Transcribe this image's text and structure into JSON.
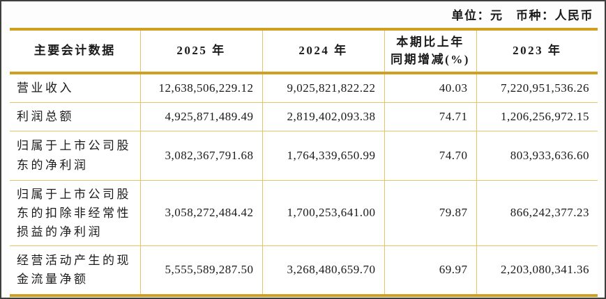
{
  "page": {
    "units_label": "单位：元　币种：人民币"
  },
  "colors": {
    "border_thick_gold": "#d19f1f",
    "border_thin_gold": "#e6c363",
    "outer_frame": "#3e3e3e",
    "text": "#1a1a1a",
    "background": "#ffffff"
  },
  "table": {
    "headers": {
      "col1": "主要会计数据",
      "col2": "2025 年",
      "col3": "2024 年",
      "col4_line1": "本期比上年",
      "col4_line2": "同期增减(%)",
      "col5": "2023 年"
    },
    "rows": [
      {
        "label": "营业收入",
        "v2025": "12,638,506,229.12",
        "v2024": "9,025,821,822.22",
        "change": "40.03",
        "v2023": "7,220,951,536.26"
      },
      {
        "label": "利润总额",
        "v2025": "4,925,871,489.49",
        "v2024": "2,819,402,093.38",
        "change": "74.71",
        "v2023": "1,206,256,972.15"
      },
      {
        "label": "归属于上市公司股东的净利润",
        "v2025": "3,082,367,791.68",
        "v2024": "1,764,339,650.99",
        "change": "74.70",
        "v2023": "803,933,636.60"
      },
      {
        "label": "归属于上市公司股东的扣除非经常性损益的净利润",
        "v2025": "3,058,272,484.42",
        "v2024": "1,700,253,641.00",
        "change": "79.87",
        "v2023": "866,242,377.23"
      },
      {
        "label": "经营活动产生的现金流量净额",
        "v2025": "5,555,589,287.50",
        "v2024": "3,268,480,659.70",
        "change": "69.97",
        "v2023": "2,203,080,341.36"
      }
    ]
  }
}
